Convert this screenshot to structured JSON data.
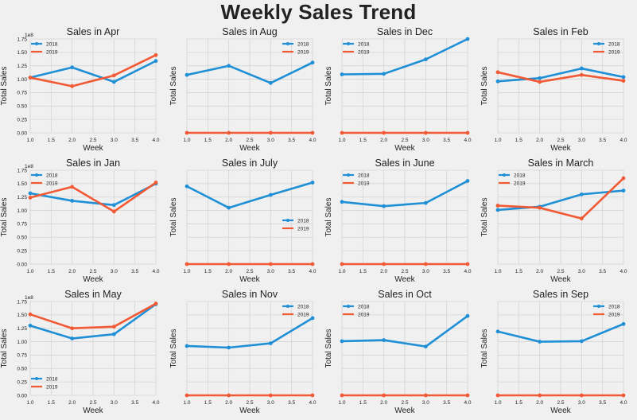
{
  "title": "Weekly Sales Trend",
  "colors": {
    "s2018": "#1f8fd6",
    "s2019": "#f15a35",
    "grid": "#d4d4d4",
    "background": "#f0f0f0"
  },
  "chart_data": [
    {
      "type": "line",
      "title": "Sales in Apr",
      "xlabel": "Week",
      "ylabel": "Total Sales",
      "x": [
        1,
        2,
        3,
        4
      ],
      "series": [
        {
          "name": "2018",
          "values": [
            1.03,
            1.22,
            0.95,
            1.34
          ]
        },
        {
          "name": "2019",
          "values": [
            1.03,
            0.87,
            1.07,
            1.45
          ]
        }
      ],
      "ylim": [
        0,
        1.75
      ],
      "xlim": [
        1,
        4
      ],
      "y_scale_label": "1e8",
      "show_xticks": true,
      "show_yticks": true,
      "legend": "top-left",
      "grid": true
    },
    {
      "type": "line",
      "title": "Sales in Aug",
      "xlabel": "Week",
      "ylabel": "Total Sales",
      "x": [
        1,
        2,
        3,
        4
      ],
      "series": [
        {
          "name": "2018",
          "values": [
            1.08,
            1.25,
            0.93,
            1.31
          ]
        },
        {
          "name": "2019",
          "values": [
            0,
            0,
            0,
            0
          ]
        }
      ],
      "ylim": [
        0,
        1.75
      ],
      "xlim": [
        1,
        4
      ],
      "show_xticks": true,
      "show_yticks": false,
      "legend": "top-right",
      "grid": true
    },
    {
      "type": "line",
      "title": "Sales in Dec",
      "xlabel": "Week",
      "ylabel": "Total Sales",
      "x": [
        1,
        2,
        3,
        4
      ],
      "series": [
        {
          "name": "2018",
          "values": [
            1.09,
            1.1,
            1.37,
            1.75
          ]
        },
        {
          "name": "2019",
          "values": [
            0,
            0,
            0,
            0
          ]
        }
      ],
      "ylim": [
        0,
        1.75
      ],
      "xlim": [
        1,
        4
      ],
      "show_xticks": true,
      "show_yticks": false,
      "legend": "top-left",
      "grid": true
    },
    {
      "type": "line",
      "title": "Sales in Feb",
      "xlabel": "Week",
      "ylabel": "Total Sales",
      "x": [
        1,
        2,
        3,
        4
      ],
      "series": [
        {
          "name": "2018",
          "values": [
            0.96,
            1.02,
            1.2,
            1.04
          ]
        },
        {
          "name": "2019",
          "values": [
            1.13,
            0.95,
            1.08,
            0.97
          ]
        }
      ],
      "ylim": [
        0,
        1.75
      ],
      "xlim": [
        1,
        4
      ],
      "show_xticks": true,
      "show_yticks": false,
      "legend": "top-right",
      "grid": true
    },
    {
      "type": "line",
      "title": "Sales in Jan",
      "xlabel": "Week",
      "ylabel": "Total Sales",
      "x": [
        1,
        2,
        3,
        4
      ],
      "series": [
        {
          "name": "2018",
          "values": [
            1.32,
            1.18,
            1.1,
            1.5
          ]
        },
        {
          "name": "2019",
          "values": [
            1.24,
            1.44,
            0.98,
            1.52
          ]
        }
      ],
      "ylim": [
        0,
        1.75
      ],
      "xlim": [
        1,
        4
      ],
      "y_scale_label": "1e8",
      "show_xticks": true,
      "show_yticks": true,
      "legend": "top-left",
      "grid": true
    },
    {
      "type": "line",
      "title": "Sales in July",
      "xlabel": "Week",
      "ylabel": "Total Sales",
      "x": [
        1,
        2,
        3,
        4
      ],
      "series": [
        {
          "name": "2018",
          "values": [
            1.45,
            1.05,
            1.29,
            1.52
          ]
        },
        {
          "name": "2019",
          "values": [
            0,
            0,
            0,
            0
          ]
        }
      ],
      "ylim": [
        0,
        1.75
      ],
      "xlim": [
        1,
        4
      ],
      "show_xticks": true,
      "show_yticks": false,
      "legend": "center-right",
      "grid": true
    },
    {
      "type": "line",
      "title": "Sales in June",
      "xlabel": "Week",
      "ylabel": "Total Sales",
      "x": [
        1,
        2,
        3,
        4
      ],
      "series": [
        {
          "name": "2018",
          "values": [
            1.16,
            1.08,
            1.14,
            1.55
          ]
        },
        {
          "name": "2019",
          "values": [
            0,
            0,
            0,
            0
          ]
        }
      ],
      "ylim": [
        0,
        1.75
      ],
      "xlim": [
        1,
        4
      ],
      "show_xticks": true,
      "show_yticks": false,
      "legend": "top-left",
      "grid": true
    },
    {
      "type": "line",
      "title": "Sales in March",
      "xlabel": "Week",
      "ylabel": "Total Sales",
      "x": [
        1,
        2,
        3,
        4
      ],
      "series": [
        {
          "name": "2018",
          "values": [
            1.01,
            1.07,
            1.3,
            1.37
          ]
        },
        {
          "name": "2019",
          "values": [
            1.09,
            1.05,
            0.85,
            1.6
          ]
        }
      ],
      "ylim": [
        0,
        1.75
      ],
      "xlim": [
        1,
        4
      ],
      "show_xticks": true,
      "show_yticks": false,
      "legend": "top-left",
      "grid": true
    },
    {
      "type": "line",
      "title": "Sales in May",
      "xlabel": "Week",
      "ylabel": "Total Sales",
      "x": [
        1,
        2,
        3,
        4
      ],
      "series": [
        {
          "name": "2018",
          "values": [
            1.3,
            1.06,
            1.14,
            1.7
          ]
        },
        {
          "name": "2019",
          "values": [
            1.51,
            1.25,
            1.28,
            1.71
          ]
        }
      ],
      "ylim": [
        0,
        1.75
      ],
      "xlim": [
        1,
        4
      ],
      "y_scale_label": "1e8",
      "show_xticks": true,
      "show_yticks": true,
      "legend": "bottom-left",
      "grid": true
    },
    {
      "type": "line",
      "title": "Sales in Nov",
      "xlabel": "Week",
      "ylabel": "Total Sales",
      "x": [
        1,
        2,
        3,
        4
      ],
      "series": [
        {
          "name": "2018",
          "values": [
            0.92,
            0.89,
            0.97,
            1.44
          ]
        },
        {
          "name": "2019",
          "values": [
            0,
            0,
            0,
            0
          ]
        }
      ],
      "ylim": [
        0,
        1.75
      ],
      "xlim": [
        1,
        4
      ],
      "show_xticks": true,
      "show_yticks": false,
      "legend": "top-right",
      "grid": true
    },
    {
      "type": "line",
      "title": "Sales in Oct",
      "xlabel": "Week",
      "ylabel": "Total Sales",
      "x": [
        1,
        2,
        3,
        4
      ],
      "series": [
        {
          "name": "2018",
          "values": [
            1.01,
            1.03,
            0.91,
            1.48
          ]
        },
        {
          "name": "2019",
          "values": [
            0,
            0,
            0,
            0
          ]
        }
      ],
      "ylim": [
        0,
        1.75
      ],
      "xlim": [
        1,
        4
      ],
      "show_xticks": true,
      "show_yticks": false,
      "legend": "top-left",
      "grid": true
    },
    {
      "type": "line",
      "title": "Sales in Sep",
      "xlabel": "Week",
      "ylabel": "Total Sales",
      "x": [
        1,
        2,
        3,
        4
      ],
      "series": [
        {
          "name": "2018",
          "values": [
            1.19,
            1.0,
            1.01,
            1.33
          ]
        },
        {
          "name": "2019",
          "values": [
            0,
            0,
            0,
            0
          ]
        }
      ],
      "ylim": [
        0,
        1.75
      ],
      "xlim": [
        1,
        4
      ],
      "show_xticks": true,
      "show_yticks": false,
      "legend": "top-right",
      "grid": true
    }
  ],
  "x_tick_labels": [
    "1.0",
    "1.5",
    "2.0",
    "2.5",
    "3.0",
    "3.5",
    "4.0"
  ],
  "y_tick_labels": [
    "0.00",
    "0.25",
    "0.50",
    "0.75",
    "1.00",
    "1.25",
    "1.50",
    "1.75"
  ]
}
